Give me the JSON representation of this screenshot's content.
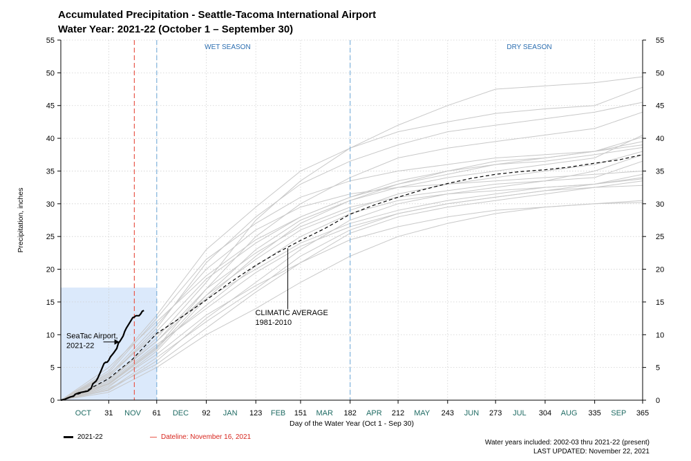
{
  "title": {
    "line1": "Accumulated Precipitation - Seattle-Tacoma International Airport",
    "line2": "Water Year: 2021-22 (October 1 – September 30)"
  },
  "colors": {
    "current": "#000000",
    "average": "#000000",
    "history": "#c8c8c8",
    "dateline": "#e8584a",
    "season_divider": "#7fb2dc",
    "season_label": "#2a6db0",
    "month_label": "#1f6b63",
    "highlight": "#dbe9fb"
  },
  "chart_data": {
    "type": "line",
    "title": "Accumulated Precipitation - Seattle-Tacoma International Airport",
    "subtitle": "Water Year: 2021-22 (October 1 – September 30)",
    "xlabel": "Day of the Water Year (Oct 1 - Sep 30)",
    "ylabel": "Precipitation, inches",
    "xlim": [
      1,
      365
    ],
    "ylim": [
      0,
      55
    ],
    "y_ticks": [
      0,
      5,
      10,
      15,
      20,
      25,
      30,
      35,
      40,
      45,
      50,
      55
    ],
    "x_ticks": [
      31,
      61,
      92,
      123,
      151,
      182,
      212,
      243,
      273,
      304,
      335,
      365
    ],
    "month_labels": [
      {
        "label": "OCT",
        "day": 15
      },
      {
        "label": "NOV",
        "day": 46
      },
      {
        "label": "DEC",
        "day": 76
      },
      {
        "label": "JAN",
        "day": 107
      },
      {
        "label": "FEB",
        "day": 137
      },
      {
        "label": "MAR",
        "day": 166
      },
      {
        "label": "APR",
        "day": 197
      },
      {
        "label": "MAY",
        "day": 227
      },
      {
        "label": "JUN",
        "day": 258
      },
      {
        "label": "JUL",
        "day": 288
      },
      {
        "label": "AUG",
        "day": 319
      },
      {
        "label": "SEP",
        "day": 350
      }
    ],
    "grid": true,
    "season_dividers": [
      61,
      182
    ],
    "season_labels": [
      {
        "label": "WET SEASON",
        "day": 91
      },
      {
        "label": "DRY SEASON",
        "day": 280
      }
    ],
    "dateline_day": 47,
    "highlight_box": {
      "x": [
        1,
        61
      ],
      "y": [
        0,
        17.2
      ]
    },
    "current": {
      "name": "2021-22",
      "annotation": "SeaTac Airport, 2021-22",
      "x": [
        1,
        3,
        5,
        7,
        9,
        10,
        12,
        14,
        16,
        18,
        20,
        21,
        23,
        24,
        26,
        28,
        29,
        30,
        31,
        32,
        34,
        36,
        37,
        38,
        40,
        41,
        42,
        44,
        46,
        47,
        48,
        50,
        51,
        52,
        53
      ],
      "y": [
        0.0,
        0.1,
        0.3,
        0.5,
        0.6,
        0.9,
        1.1,
        1.2,
        1.3,
        1.4,
        1.8,
        2.5,
        2.9,
        3.3,
        4.4,
        5.6,
        5.8,
        5.8,
        6.1,
        6.6,
        7.2,
        7.9,
        8.7,
        9.0,
        9.8,
        10.5,
        11.0,
        11.8,
        12.6,
        12.7,
        12.9,
        12.9,
        13.2,
        13.6,
        13.7
      ]
    },
    "average": {
      "name": "CLIMATIC AVERAGE 1981-2010",
      "annotation_line1": "CLIMATIC AVERAGE",
      "annotation_line2": "1981-2010",
      "annotation_point": {
        "x": 143,
        "y": 23.2
      },
      "x": [
        1,
        15,
        31,
        46,
        61,
        76,
        92,
        107,
        123,
        137,
        151,
        166,
        182,
        197,
        212,
        227,
        243,
        258,
        273,
        288,
        304,
        319,
        335,
        350,
        365
      ],
      "y": [
        0.0,
        1.2,
        3.3,
        6.3,
        10.2,
        12.6,
        15.3,
        18.0,
        20.6,
        22.6,
        24.4,
        26.2,
        28.4,
        29.8,
        31.0,
        32.1,
        33.1,
        33.9,
        34.5,
        34.9,
        35.2,
        35.6,
        36.2,
        36.7,
        37.5
      ]
    },
    "historical_years": {
      "x": [
        1,
        31,
        61,
        92,
        123,
        151,
        182,
        212,
        243,
        273,
        304,
        335,
        365
      ],
      "series": [
        [
          0,
          3.0,
          9.5,
          18.0,
          27.5,
          33.5,
          38.5,
          42.0,
          45.0,
          47.5,
          48.0,
          48.5,
          49.4
        ],
        [
          0,
          4.5,
          13.0,
          23.0,
          29.5,
          35.0,
          38.5,
          41.0,
          42.5,
          43.8,
          44.5,
          45.0,
          47.8
        ],
        [
          0,
          3.5,
          11.0,
          21.0,
          28.0,
          33.0,
          36.5,
          39.0,
          41.0,
          42.0,
          43.0,
          44.0,
          45.5
        ],
        [
          0,
          2.5,
          8.0,
          17.0,
          25.0,
          30.0,
          34.0,
          37.0,
          38.5,
          39.5,
          40.5,
          41.5,
          44.0
        ],
        [
          0,
          5.0,
          12.0,
          19.0,
          24.5,
          28.0,
          31.0,
          33.0,
          34.5,
          36.0,
          37.0,
          38.0,
          40.2
        ],
        [
          0,
          2.0,
          7.5,
          15.5,
          22.0,
          27.0,
          30.5,
          33.0,
          35.0,
          36.5,
          37.0,
          38.0,
          39.5
        ],
        [
          0,
          3.2,
          9.0,
          16.0,
          21.5,
          26.0,
          29.0,
          31.5,
          33.0,
          34.0,
          35.0,
          36.0,
          38.0
        ],
        [
          0,
          1.5,
          6.0,
          12.5,
          18.0,
          23.0,
          27.5,
          30.0,
          31.5,
          32.5,
          33.5,
          35.0,
          37.5
        ],
        [
          0,
          4.0,
          10.0,
          15.5,
          20.0,
          24.0,
          27.0,
          29.0,
          30.5,
          31.5,
          32.5,
          33.0,
          34.5
        ],
        [
          0,
          2.8,
          8.5,
          14.0,
          19.5,
          23.5,
          26.5,
          28.5,
          30.0,
          31.0,
          32.0,
          33.0,
          34.0
        ],
        [
          0,
          1.8,
          5.5,
          11.0,
          16.5,
          21.0,
          25.5,
          28.0,
          29.5,
          30.5,
          31.5,
          32.5,
          33.5
        ],
        [
          0,
          3.8,
          11.5,
          20.0,
          26.0,
          29.5,
          31.5,
          32.5,
          33.0,
          33.5,
          34.0,
          34.5,
          35.0
        ],
        [
          0,
          2.2,
          7.0,
          13.0,
          17.5,
          21.0,
          24.5,
          26.5,
          28.0,
          29.0,
          29.5,
          30.0,
          30.5
        ],
        [
          0,
          1.2,
          5.0,
          10.0,
          14.0,
          18.0,
          22.0,
          25.0,
          27.0,
          28.5,
          29.5,
          30.0,
          30.2
        ],
        [
          0,
          3.0,
          9.0,
          17.0,
          22.5,
          26.5,
          29.5,
          31.0,
          32.0,
          33.0,
          33.5,
          34.0,
          36.5
        ],
        [
          0,
          4.2,
          12.5,
          21.5,
          27.0,
          31.0,
          33.5,
          35.0,
          36.0,
          37.0,
          37.5,
          38.0,
          39.0
        ],
        [
          0,
          2.6,
          8.2,
          14.5,
          20.5,
          25.0,
          28.5,
          30.5,
          31.5,
          32.0,
          32.5,
          33.0,
          33.8
        ],
        [
          0,
          3.6,
          10.5,
          18.5,
          24.0,
          28.0,
          31.0,
          33.5,
          35.0,
          36.0,
          36.5,
          37.5,
          38.6
        ],
        [
          0,
          1.6,
          6.5,
          12.0,
          17.0,
          22.0,
          26.0,
          28.5,
          30.0,
          31.0,
          32.0,
          32.5,
          32.8
        ],
        [
          0,
          2.4,
          7.8,
          16.0,
          23.0,
          27.5,
          30.5,
          32.5,
          34.0,
          35.0,
          36.0,
          37.0,
          40.5
        ]
      ]
    }
  },
  "legend": {
    "current_label": "2021-22",
    "dateline_label": "Dateline: November 16, 2021"
  },
  "footer": {
    "line1": "Water years included: 2002-03 thru 2021-22 (present)",
    "line2": "LAST UPDATED: November 22, 2021"
  }
}
